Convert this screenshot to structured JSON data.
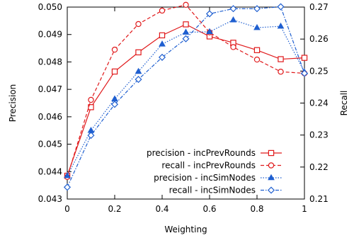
{
  "chart_data": {
    "type": "line",
    "xlabel": "Weighting",
    "ylabel_left": "Precision",
    "ylabel_right": "Recall",
    "xlim": [
      0,
      1
    ],
    "ylim_left": [
      0.043,
      0.05
    ],
    "ylim_right": [
      0.21,
      0.27
    ],
    "x_ticks": [
      "0",
      "0.2",
      "0.4",
      "0.6",
      "0.8",
      "1"
    ],
    "y_ticks_left": [
      "0.043",
      "0.044",
      "0.045",
      "0.046",
      "0.047",
      "0.048",
      "0.049",
      "0.050"
    ],
    "y_ticks_right": [
      "0.21",
      "0.22",
      "0.23",
      "0.24",
      "0.25",
      "0.26",
      "0.27"
    ],
    "grid": false,
    "legend_position": "bottom-right",
    "x": [
      0,
      0.1,
      0.2,
      0.3,
      0.4,
      0.5,
      0.6,
      0.7,
      0.8,
      0.9,
      1.0
    ],
    "series": [
      {
        "name": "precision - incPrevRounds",
        "axis": "left",
        "color": "#e0191b",
        "dash": "solid",
        "marker": "square-open",
        "values": [
          0.04385,
          0.04635,
          0.04765,
          0.04835,
          0.04897,
          0.04937,
          0.04893,
          0.0487,
          0.04843,
          0.0481,
          0.04815
        ]
      },
      {
        "name": "recall - incPrevRounds",
        "axis": "right",
        "color": "#e0191b",
        "dash": "dashed",
        "marker": "circle-open",
        "values": [
          0.2169,
          0.241,
          0.2567,
          0.2647,
          0.2689,
          0.2707,
          0.2621,
          0.2575,
          0.2536,
          0.2498,
          0.2493
        ]
      },
      {
        "name": "precision - incSimNodes",
        "axis": "left",
        "color": "#1f5fd0",
        "dash": "dotted",
        "marker": "triangle",
        "values": [
          0.04385,
          0.0455,
          0.04665,
          0.04765,
          0.04865,
          0.04908,
          0.0491,
          0.04953,
          0.04925,
          0.0493,
          0.04763
        ]
      },
      {
        "name": "recall - incSimNodes",
        "axis": "right",
        "color": "#1f5fd0",
        "dash": "dashdot",
        "marker": "diamond",
        "values": [
          0.2137,
          0.2299,
          0.2396,
          0.2474,
          0.2543,
          0.2601,
          0.2679,
          0.2695,
          0.2695,
          0.2701,
          0.2493
        ]
      }
    ]
  }
}
